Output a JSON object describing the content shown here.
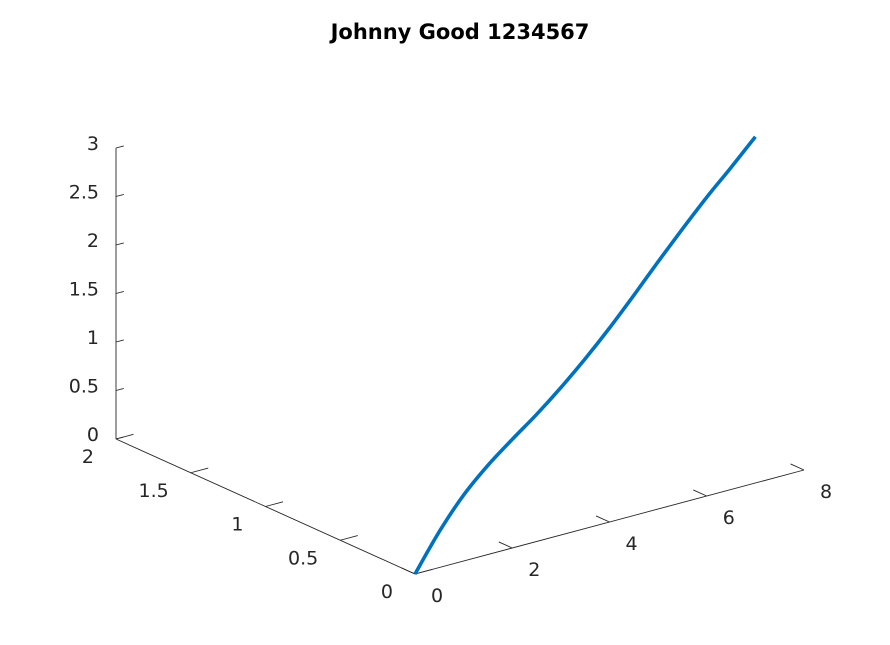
{
  "chart_data": {
    "type": "line",
    "title": "Johnny Good 1234567",
    "xlabel": "",
    "ylabel": "",
    "zlabel": "",
    "projection": "3d",
    "grid": false,
    "xlim": [
      0,
      8
    ],
    "ylim": [
      0,
      2
    ],
    "zlim": [
      0,
      3
    ],
    "x_ticks": [
      "0",
      "2",
      "4",
      "6",
      "8"
    ],
    "y_ticks": [
      "0",
      "0.5",
      "1",
      "1.5",
      "2"
    ],
    "z_ticks": [
      "0",
      "0.5",
      "1",
      "1.5",
      "2",
      "2.5",
      "3"
    ],
    "x_tick_values": [
      0,
      2,
      4,
      6,
      8
    ],
    "y_tick_values": [
      0,
      0.5,
      1,
      1.5,
      2
    ],
    "z_tick_values": [
      0,
      0.5,
      1,
      1.5,
      2,
      2.5,
      3
    ],
    "series": [
      {
        "color": "#0072BD",
        "x": [
          0,
          0.5,
          1,
          1.5,
          2,
          2.5,
          3,
          3.5,
          4,
          4.5,
          5,
          5.5,
          6,
          6.5,
          7
        ],
        "y": [
          0,
          0,
          0,
          0,
          0,
          0,
          0,
          0,
          0,
          0,
          0,
          0,
          0,
          0,
          0
        ],
        "z": [
          0.0,
          0.37,
          0.68,
          0.92,
          1.12,
          1.31,
          1.52,
          1.75,
          2.0,
          2.27,
          2.55,
          2.82,
          3.08,
          3.32,
          3.57
        ]
      }
    ]
  }
}
